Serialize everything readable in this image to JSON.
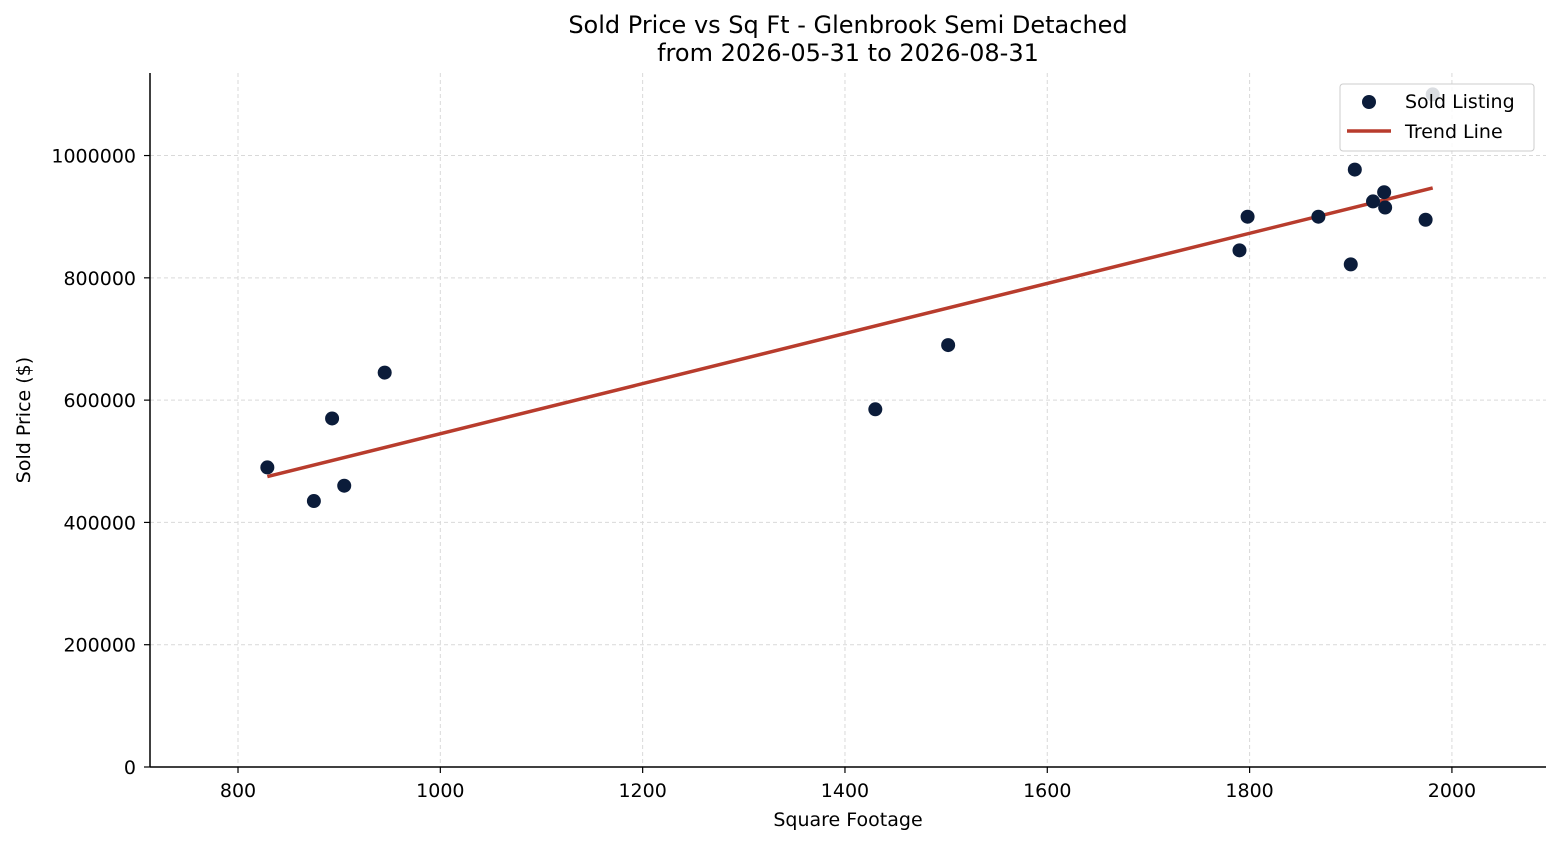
{
  "chart_data": {
    "type": "scatter",
    "title": "Sold Price vs Sq Ft - Glenbrook Semi Detached",
    "subtitle": "from 2026-05-31 to 2026-08-31",
    "xlabel": "Square Footage",
    "ylabel": "Sold Price ($)",
    "xlim": [
      713,
      2093
    ],
    "ylim": [
      0,
      1135000
    ],
    "x_ticks": [
      800,
      1000,
      1200,
      1400,
      1600,
      1800,
      2000
    ],
    "x_tick_labels": [
      "800",
      "1000",
      "1200",
      "1400",
      "1600",
      "1800",
      "2000"
    ],
    "y_ticks": [
      0,
      200000,
      400000,
      600000,
      800000,
      1000000
    ],
    "y_tick_labels": [
      "0",
      "200000",
      "400000",
      "600000",
      "800000",
      "1000000"
    ],
    "grid": true,
    "legend_position": "top-right",
    "series": [
      {
        "name": "Sold Listing",
        "kind": "scatter",
        "color": "#0b1c3a",
        "points": [
          {
            "x": 829,
            "y": 490000
          },
          {
            "x": 875,
            "y": 435000
          },
          {
            "x": 893,
            "y": 570000
          },
          {
            "x": 905,
            "y": 460000
          },
          {
            "x": 945,
            "y": 645000
          },
          {
            "x": 1430,
            "y": 585000
          },
          {
            "x": 1502,
            "y": 690000
          },
          {
            "x": 1790,
            "y": 845000
          },
          {
            "x": 1798,
            "y": 900000
          },
          {
            "x": 1868,
            "y": 900000
          },
          {
            "x": 1900,
            "y": 822000
          },
          {
            "x": 1904,
            "y": 977000
          },
          {
            "x": 1922,
            "y": 925000
          },
          {
            "x": 1933,
            "y": 940000
          },
          {
            "x": 1934,
            "y": 915000
          },
          {
            "x": 1974,
            "y": 895000
          },
          {
            "x": 1981,
            "y": 1100000
          }
        ]
      },
      {
        "name": "Trend Line",
        "kind": "line",
        "color": "#b83c2d",
        "points": [
          {
            "x": 829,
            "y": 475000
          },
          {
            "x": 1981,
            "y": 947000
          }
        ]
      }
    ]
  },
  "colors": {
    "grid": "#d9d9d9",
    "axis": "#000000",
    "background": "#ffffff"
  }
}
